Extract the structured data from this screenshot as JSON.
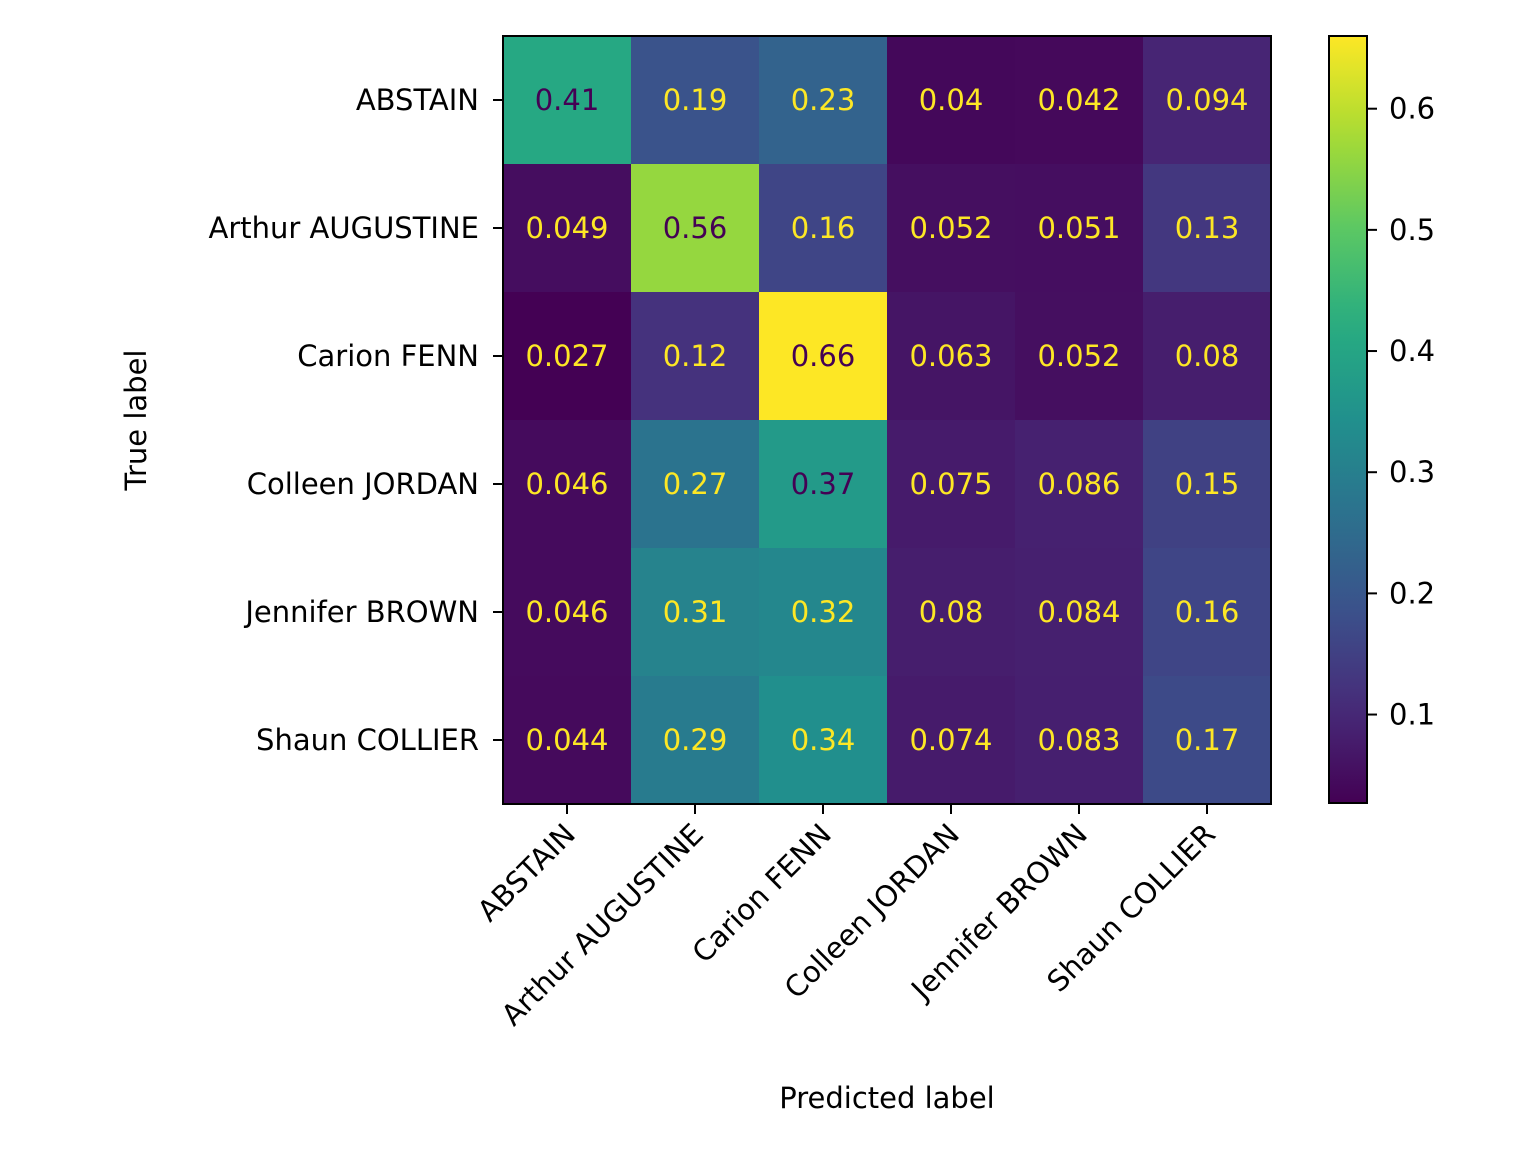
{
  "chart_data": {
    "type": "heatmap",
    "title": "",
    "xlabel": "Predicted label",
    "ylabel": "True label",
    "x_categories": [
      "ABSTAIN",
      "Arthur AUGUSTINE",
      "Carion FENN",
      "Colleen JORDAN",
      "Jennifer BROWN",
      "Shaun COLLIER"
    ],
    "y_categories": [
      "ABSTAIN",
      "Arthur AUGUSTINE",
      "Carion FENN",
      "Colleen JORDAN",
      "Jennifer BROWN",
      "Shaun COLLIER"
    ],
    "values": [
      [
        0.41,
        0.19,
        0.23,
        0.04,
        0.042,
        0.094
      ],
      [
        0.049,
        0.56,
        0.16,
        0.052,
        0.051,
        0.13
      ],
      [
        0.027,
        0.12,
        0.66,
        0.063,
        0.052,
        0.08
      ],
      [
        0.046,
        0.27,
        0.37,
        0.075,
        0.086,
        0.15
      ],
      [
        0.046,
        0.31,
        0.32,
        0.08,
        0.084,
        0.16
      ],
      [
        0.044,
        0.29,
        0.34,
        0.074,
        0.083,
        0.17
      ]
    ],
    "value_labels": [
      [
        "0.41",
        "0.19",
        "0.23",
        "0.04",
        "0.042",
        "0.094"
      ],
      [
        "0.049",
        "0.56",
        "0.16",
        "0.052",
        "0.051",
        "0.13"
      ],
      [
        "0.027",
        "0.12",
        "0.66",
        "0.063",
        "0.052",
        "0.08"
      ],
      [
        "0.046",
        "0.27",
        "0.37",
        "0.075",
        "0.086",
        "0.15"
      ],
      [
        "0.046",
        "0.31",
        "0.32",
        "0.08",
        "0.084",
        "0.16"
      ],
      [
        "0.044",
        "0.29",
        "0.34",
        "0.074",
        "0.083",
        "0.17"
      ]
    ],
    "colormap": "viridis",
    "colorbar": {
      "range": [
        0.027,
        0.66
      ],
      "ticks": [
        0.1,
        0.2,
        0.3,
        0.4,
        0.5,
        0.6
      ],
      "tick_labels": [
        "0.1",
        "0.2",
        "0.3",
        "0.4",
        "0.5",
        "0.6"
      ]
    },
    "label_colors": {
      "on_dark": "#fde725",
      "on_light": "#440154"
    },
    "grid": false,
    "legend": "colorbar-right"
  }
}
